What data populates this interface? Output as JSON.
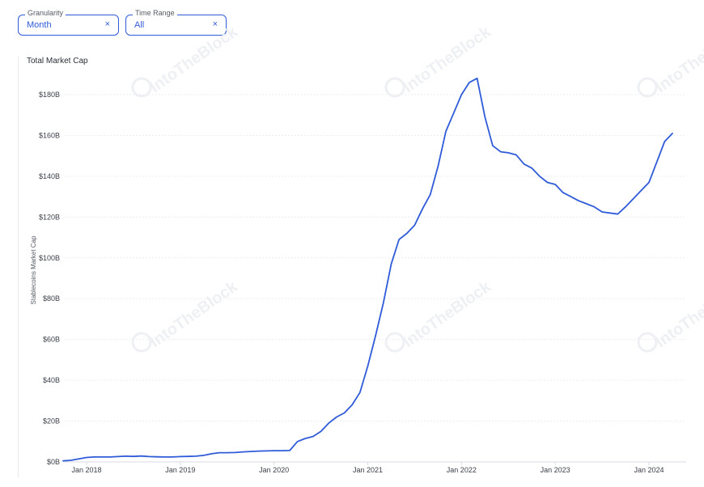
{
  "filters": {
    "granularity": {
      "label": "Granularity",
      "value": "Month",
      "clear_icon": "×"
    },
    "time_range": {
      "label": "Time Range",
      "value": "All",
      "clear_icon": "×"
    }
  },
  "chart_title": "Total Market Cap",
  "watermark": "IntoTheBlock",
  "chart_data": {
    "type": "line",
    "title": "Total Market Cap",
    "xlabel": "",
    "ylabel": "Stablecoins Market Cap",
    "y_unit": "billion USD",
    "ylim": [
      0,
      185
    ],
    "yticks": [
      0,
      20,
      40,
      60,
      80,
      100,
      120,
      140,
      160,
      180
    ],
    "ytick_labels": [
      "$0B",
      "$20B",
      "$40B",
      "$60B",
      "$80B",
      "$100B",
      "$120B",
      "$140B",
      "$160B",
      "$180B"
    ],
    "xticks": [
      "2018-01",
      "2019-01",
      "2020-01",
      "2021-01",
      "2022-01",
      "2023-01",
      "2024-01"
    ],
    "xtick_labels": [
      "Jan 2018",
      "Jan 2019",
      "Jan 2020",
      "Jan 2021",
      "Jan 2022",
      "Jan 2023",
      "Jan 2024"
    ],
    "grid": "horizontal",
    "color": "#2f5bd8",
    "series": [
      {
        "x": [
          "2017-10",
          "2017-11",
          "2017-12",
          "2018-01",
          "2018-02",
          "2018-03",
          "2018-04",
          "2018-05",
          "2018-06",
          "2018-07",
          "2018-08",
          "2018-09",
          "2018-10",
          "2018-11",
          "2018-12",
          "2019-01",
          "2019-02",
          "2019-03",
          "2019-04",
          "2019-05",
          "2019-06",
          "2019-07",
          "2019-08",
          "2019-09",
          "2019-10",
          "2019-11",
          "2019-12",
          "2020-01",
          "2020-02",
          "2020-03",
          "2020-04",
          "2020-05",
          "2020-06",
          "2020-07",
          "2020-08",
          "2020-09",
          "2020-10",
          "2020-11",
          "2020-12",
          "2021-01",
          "2021-02",
          "2021-03",
          "2021-04",
          "2021-05",
          "2021-06",
          "2021-07",
          "2021-08",
          "2021-09",
          "2021-10",
          "2021-11",
          "2021-12",
          "2022-01",
          "2022-02",
          "2022-03",
          "2022-04",
          "2022-05",
          "2022-06",
          "2022-07",
          "2022-08",
          "2022-09",
          "2022-10",
          "2022-11",
          "2022-12",
          "2023-01",
          "2023-02",
          "2023-03",
          "2023-04",
          "2023-05",
          "2023-06",
          "2023-07",
          "2023-08",
          "2023-09",
          "2023-10",
          "2023-11",
          "2023-12",
          "2024-01",
          "2024-02",
          "2024-03",
          "2024-04"
        ],
        "values": [
          0.5,
          0.8,
          1.5,
          2.2,
          2.4,
          2.4,
          2.4,
          2.6,
          2.8,
          2.7,
          2.9,
          2.6,
          2.5,
          2.4,
          2.4,
          2.6,
          2.7,
          2.8,
          3.2,
          4.0,
          4.5,
          4.5,
          4.6,
          4.9,
          5.1,
          5.3,
          5.4,
          5.5,
          5.5,
          5.6,
          10.0,
          11.5,
          12.5,
          15.0,
          19.0,
          22.0,
          24.0,
          28.0,
          34.0,
          47.0,
          62.0,
          78.0,
          97.0,
          109.0,
          112.0,
          116.0,
          124.0,
          131.0,
          145.0,
          162.0,
          171.0,
          180.0,
          186.0,
          188.0,
          169.0,
          155.0,
          152.0,
          151.5,
          150.5,
          146.0,
          144.0,
          140.0,
          137.0,
          136.0,
          132.0,
          130.0,
          128.0,
          126.5,
          125.0,
          122.5,
          122.0,
          121.5,
          125.0,
          129.0,
          133.0,
          137.0,
          147.0,
          157.0,
          161.0
        ]
      }
    ]
  }
}
